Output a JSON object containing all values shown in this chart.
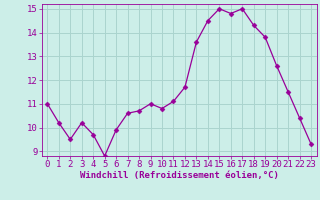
{
  "x": [
    0,
    1,
    2,
    3,
    4,
    5,
    6,
    7,
    8,
    9,
    10,
    11,
    12,
    13,
    14,
    15,
    16,
    17,
    18,
    19,
    20,
    21,
    22,
    23
  ],
  "y": [
    11.0,
    10.2,
    9.5,
    10.2,
    9.7,
    8.8,
    9.9,
    10.6,
    10.7,
    11.0,
    10.8,
    11.1,
    11.7,
    13.6,
    14.5,
    15.0,
    14.8,
    15.0,
    14.3,
    13.8,
    12.6,
    11.5,
    10.4,
    9.3
  ],
  "line_color": "#990099",
  "marker": "D",
  "marker_size": 2.5,
  "bg_color": "#cceee8",
  "grid_color": "#aad4ce",
  "tick_color": "#990099",
  "label_color": "#990099",
  "xlabel": "Windchill (Refroidissement éolien,°C)",
  "ylim": [
    9,
    15
  ],
  "xlim": [
    -0.5,
    23.5
  ],
  "yticks": [
    9,
    10,
    11,
    12,
    13,
    14,
    15
  ],
  "xticks": [
    0,
    1,
    2,
    3,
    4,
    5,
    6,
    7,
    8,
    9,
    10,
    11,
    12,
    13,
    14,
    15,
    16,
    17,
    18,
    19,
    20,
    21,
    22,
    23
  ],
  "tick_font_size": 6.5,
  "label_font_size": 6.5
}
